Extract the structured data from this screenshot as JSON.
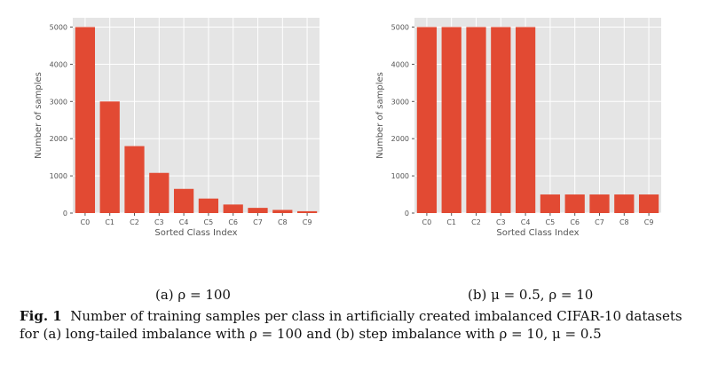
{
  "chart_data": [
    {
      "type": "bar",
      "categories": [
        "C0",
        "C1",
        "C2",
        "C3",
        "C4",
        "C5",
        "C6",
        "C7",
        "C8",
        "C9"
      ],
      "values": [
        5000,
        3000,
        1800,
        1080,
        650,
        390,
        230,
        140,
        85,
        50
      ],
      "xlabel": "Sorted Class Index",
      "ylabel": "Number of samples",
      "ylim": [
        0,
        5250
      ],
      "yticks": [
        0,
        1000,
        2000,
        3000,
        4000,
        5000
      ],
      "grid": true,
      "bar_color": "#e24a33",
      "background_color": "#e5e5e5",
      "caption": "(a) ρ = 100"
    },
    {
      "type": "bar",
      "categories": [
        "C0",
        "C1",
        "C2",
        "C3",
        "C4",
        "C5",
        "C6",
        "C7",
        "C8",
        "C9"
      ],
      "values": [
        5000,
        5000,
        5000,
        5000,
        5000,
        500,
        500,
        500,
        500,
        500
      ],
      "xlabel": "Sorted Class Index",
      "ylabel": "Number of samples",
      "ylim": [
        0,
        5250
      ],
      "yticks": [
        0,
        1000,
        2000,
        3000,
        4000,
        5000
      ],
      "grid": true,
      "bar_color": "#e24a33",
      "background_color": "#e5e5e5",
      "caption": "(b) μ = 0.5, ρ = 10"
    }
  ],
  "figure_caption": {
    "label": "Fig. 1",
    "text": "Number of training samples per class in artificially created imbalanced CIFAR-10 datasets for (a) long-tailed imbalance with ρ = 100 and (b) step imbalance with ρ = 10, μ = 0.5"
  }
}
